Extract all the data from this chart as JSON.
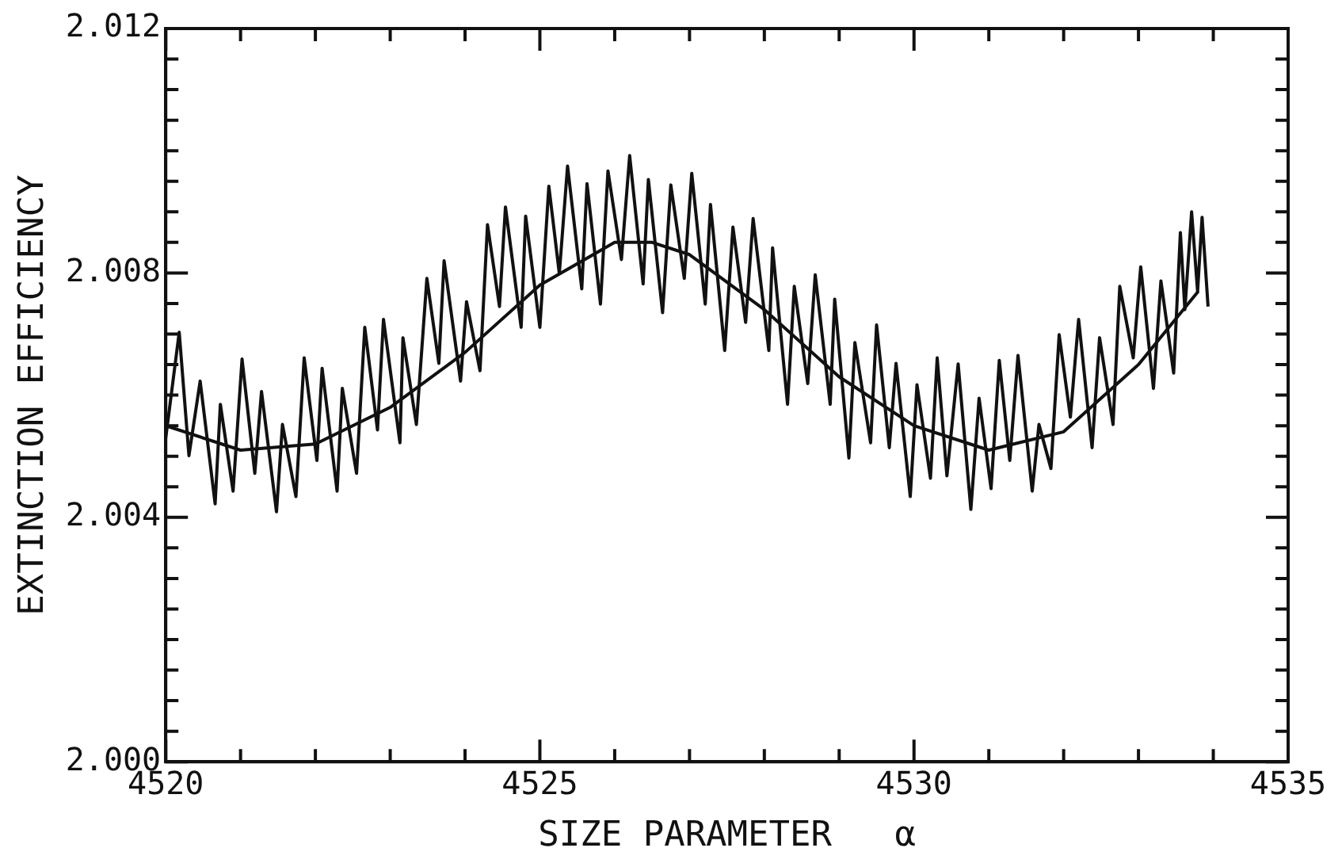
{
  "chart_data": {
    "type": "line",
    "xlabel": "SIZE PARAMETER   α",
    "ylabel": "EXTINCTION EFFICIENCY",
    "xlim": [
      4520,
      4535
    ],
    "ylim": [
      2.0,
      2.012
    ],
    "xticks": [
      4520,
      {
        "value": 4521,
        "label": null
      },
      {
        "value": 4522,
        "label": null
      },
      {
        "value": 4523,
        "label": null
      },
      {
        "value": 4524,
        "label": null
      },
      4525,
      {
        "value": 4526,
        "label": null
      },
      {
        "value": 4527,
        "label": null
      },
      {
        "value": 4528,
        "label": null
      },
      {
        "value": 4529,
        "label": null
      },
      4530,
      {
        "value": 4531,
        "label": null
      },
      {
        "value": 4532,
        "label": null
      },
      {
        "value": 4533,
        "label": null
      },
      {
        "value": 4534,
        "label": null
      },
      4535
    ],
    "yticks": [
      {
        "value": 2.0,
        "label": "2.000"
      },
      {
        "value": 2.0005,
        "label": null
      },
      {
        "value": 2.001,
        "label": null
      },
      {
        "value": 2.0015,
        "label": null
      },
      {
        "value": 2.002,
        "label": null
      },
      {
        "value": 2.0025,
        "label": null
      },
      {
        "value": 2.003,
        "label": null
      },
      {
        "value": 2.0035,
        "label": null
      },
      {
        "value": 2.004,
        "label": "2.004"
      },
      {
        "value": 2.0045,
        "label": null
      },
      {
        "value": 2.005,
        "label": null
      },
      {
        "value": 2.0055,
        "label": null
      },
      {
        "value": 2.006,
        "label": null
      },
      {
        "value": 2.0065,
        "label": null
      },
      {
        "value": 2.007,
        "label": null
      },
      {
        "value": 2.0075,
        "label": null
      },
      {
        "value": 2.008,
        "label": "2.008"
      },
      {
        "value": 2.0085,
        "label": null
      },
      {
        "value": 2.009,
        "label": null
      },
      {
        "value": 2.0095,
        "label": null
      },
      {
        "value": 2.01,
        "label": null
      },
      {
        "value": 2.0105,
        "label": null
      },
      {
        "value": 2.011,
        "label": null
      },
      {
        "value": 2.0115,
        "label": null
      },
      {
        "value": 2.012,
        "label": "2.012"
      }
    ],
    "grid": false,
    "legend": false,
    "marker": "none",
    "line_style": "solid",
    "series": [
      {
        "color": "#111111",
        "x": [
          4520.0,
          4520.18,
          4520.31,
          4520.46,
          4520.66,
          4520.73,
          4520.9,
          4521.02,
          4521.19,
          4521.28,
          4521.48,
          4521.56,
          4521.74,
          4521.85,
          4522.02,
          4522.09,
          4522.29,
          4522.36,
          4522.55,
          4522.66,
          4522.83,
          4522.91,
          4523.13,
          4523.17,
          4523.35,
          4523.49,
          4523.65,
          4523.72,
          4523.94,
          4524.02,
          4524.2,
          4524.3,
          4524.46,
          4524.54,
          4524.75,
          4524.81,
          4525.0,
          4525.12,
          4525.26,
          4525.37,
          4525.56,
          4525.63,
          4525.81,
          4525.91,
          4526.09,
          4526.2,
          4526.38,
          4526.45,
          4526.64,
          4526.75,
          4526.93,
          4527.03,
          4527.21,
          4527.28,
          4527.47,
          4527.58,
          4527.75,
          4527.85,
          4528.06,
          4528.11,
          4528.31,
          4528.4,
          4528.58,
          4528.68,
          4528.88,
          4528.94,
          4529.13,
          4529.21,
          4529.42,
          4529.5,
          4529.67,
          4529.76,
          4529.95,
          4530.04,
          4530.22,
          4530.31,
          4530.44,
          4530.59,
          4530.76,
          4530.87,
          4531.03,
          4531.14,
          4531.28,
          4531.39,
          4531.58,
          4531.67,
          4531.83,
          4531.94,
          4532.09,
          4532.2,
          4532.38,
          4532.48,
          4532.66,
          4532.75,
          4532.93,
          4533.03,
          4533.2,
          4533.3,
          4533.47,
          4533.56,
          4533.62,
          4533.71,
          4533.79,
          4533.85,
          4533.93
        ],
        "values": [
          2.0053,
          2.00703,
          2.00501,
          2.00623,
          2.00422,
          2.00585,
          2.00443,
          2.00659,
          2.00472,
          2.00606,
          2.00409,
          2.00552,
          2.00434,
          2.00661,
          2.00493,
          2.00644,
          2.00443,
          2.00611,
          2.00472,
          2.00711,
          2.00543,
          2.00724,
          2.00522,
          2.00694,
          2.00552,
          2.00791,
          2.00652,
          2.0082,
          2.00623,
          2.00753,
          2.0064,
          2.00879,
          2.00745,
          2.00908,
          2.00711,
          2.00893,
          2.00711,
          2.00942,
          2.00799,
          2.00975,
          2.00774,
          2.00946,
          2.00749,
          2.00967,
          2.00822,
          2.00992,
          2.00782,
          2.00953,
          2.00735,
          2.00944,
          2.00791,
          2.00963,
          2.00749,
          2.00912,
          2.00673,
          2.00875,
          2.00719,
          2.00889,
          2.00673,
          2.00841,
          2.00585,
          2.00778,
          2.00619,
          2.00797,
          2.00585,
          2.00757,
          2.00497,
          2.00686,
          2.00522,
          2.00715,
          2.00514,
          2.00652,
          2.00434,
          2.00617,
          2.00464,
          2.00661,
          2.00468,
          2.00651,
          2.00413,
          2.00595,
          2.00447,
          2.00657,
          2.00493,
          2.00665,
          2.00443,
          2.00552,
          2.0048,
          2.00699,
          2.00564,
          2.00724,
          2.00514,
          2.00694,
          2.00552,
          2.00778,
          2.00661,
          2.0081,
          2.00611,
          2.00787,
          2.00636,
          2.00866,
          2.0074,
          2.009,
          2.0077,
          2.00891,
          2.00745
        ]
      },
      {
        "color": "#111111",
        "x": [
          4520.0,
          4521.0,
          4522.0,
          4523.0,
          4524.0,
          4525.0,
          4526.0,
          4526.5,
          4527.0,
          4528.0,
          4529.0,
          4530.0,
          4531.0,
          4532.0,
          4533.0,
          4533.8
        ],
        "values": [
          2.0055,
          2.0051,
          2.0052,
          2.0058,
          2.0067,
          2.0078,
          2.0085,
          2.0085,
          2.0083,
          2.0074,
          2.0063,
          2.0055,
          2.0051,
          2.0054,
          2.0065,
          2.0077
        ]
      }
    ]
  }
}
